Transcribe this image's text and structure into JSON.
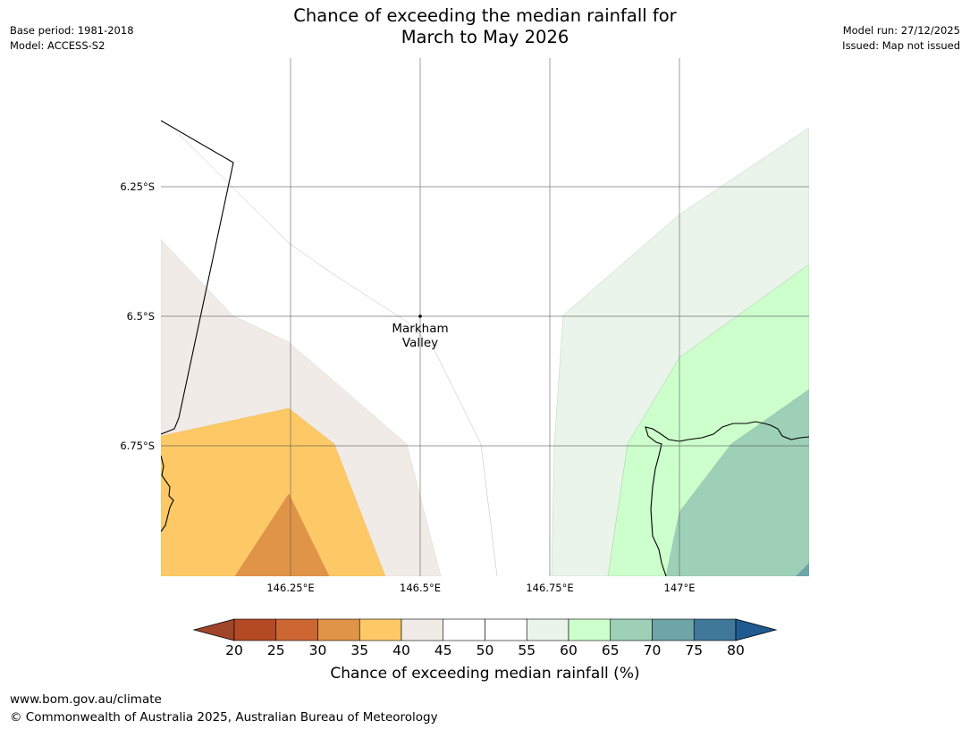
{
  "header": {
    "title_line1": "Chance of exceeding the median rainfall for",
    "title_line2": "March to May 2026",
    "base_period": "Base period: 1981-2018",
    "model": "Model: ACCESS-S2",
    "model_run": "Model run: 27/12/2025",
    "issued": "Issued: Map not issued"
  },
  "map": {
    "lat_labels": [
      "6.25°S",
      "6.5°S",
      "6.75°S"
    ],
    "lon_labels": [
      "146.25°E",
      "146.5°E",
      "146.75°E",
      "147°E"
    ],
    "place": {
      "name_line1": "Markham",
      "name_line2": "Valley"
    }
  },
  "colorbar": {
    "ticks": [
      "20",
      "25",
      "30",
      "35",
      "40",
      "45",
      "50",
      "55",
      "60",
      "65",
      "70",
      "75",
      "80"
    ],
    "colors": [
      "#a0442a",
      "#b34a24",
      "#cc6633",
      "#e09448",
      "#fdc966",
      "#f0ebe6",
      "#ffffff",
      "#ffffff",
      "#eaf4ea",
      "#ccffcc",
      "#9ed0b8",
      "#6fa4a8",
      "#3f7898",
      "#1f5a90"
    ],
    "label": "Chance of exceeding median rainfall (%)"
  },
  "footer": {
    "url": "www.bom.gov.au/climate",
    "copyright": "© Commonwealth of Australia 2025, Australian Bureau of Meteorology"
  }
}
